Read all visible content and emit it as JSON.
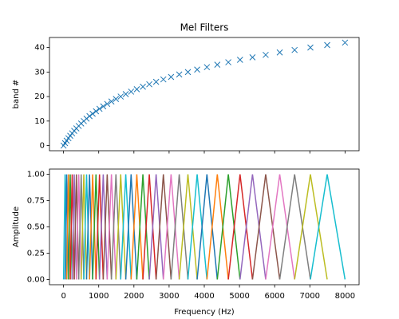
{
  "chart_data": [
    {
      "type": "scatter",
      "title": "Mel Filters",
      "y_label": "band #",
      "marker": "x",
      "color": "#1f77b4",
      "x": [
        0,
        43,
        89,
        138,
        190,
        245,
        303,
        365,
        431,
        501,
        576,
        654,
        738,
        827,
        922,
        1022,
        1128,
        1241,
        1361,
        1489,
        1624,
        1768,
        1920,
        2082,
        2255,
        2437,
        2631,
        2837,
        3056,
        3288,
        3535,
        3797,
        4075,
        4370,
        4683,
        5016,
        5370,
        5745,
        6144,
        6567,
        7016,
        7493,
        8000
      ],
      "values": [
        0,
        1,
        2,
        3,
        4,
        5,
        6,
        7,
        8,
        9,
        10,
        11,
        12,
        13,
        14,
        15,
        16,
        17,
        18,
        19,
        20,
        21,
        22,
        23,
        24,
        25,
        26,
        27,
        28,
        29,
        30,
        31,
        32,
        33,
        34,
        35,
        36,
        37,
        38,
        39,
        40,
        41,
        42
      ],
      "xlim": [
        -400,
        8400
      ],
      "ylim": [
        -2.1,
        44.1
      ],
      "xticks": [
        0,
        1000,
        2000,
        3000,
        4000,
        5000,
        6000,
        7000,
        8000
      ],
      "yticks": [
        0,
        10,
        20,
        30,
        40
      ]
    },
    {
      "type": "line",
      "x_label": "Frequency (Hz)",
      "y_label": "Amplitude",
      "xlim": [
        -400,
        8400
      ],
      "ylim": [
        -0.05,
        1.05
      ],
      "xticks": [
        0,
        1000,
        2000,
        3000,
        4000,
        5000,
        6000,
        7000,
        8000
      ],
      "yticks": [
        {
          "value": 0,
          "label": "0.00"
        },
        {
          "value": 0.25,
          "label": "0.25"
        },
        {
          "value": 0.5,
          "label": "0.50"
        },
        {
          "value": 0.75,
          "label": "0.75"
        },
        {
          "value": 1,
          "label": "1.00"
        }
      ],
      "series": [
        {
          "color": "#17becf",
          "x": [
            0,
            43,
            89
          ],
          "values": [
            0,
            1,
            0
          ]
        },
        {
          "color": "#1f77b4",
          "x": [
            43,
            89,
            138
          ],
          "values": [
            0,
            1,
            0
          ]
        },
        {
          "color": "#ff7f0e",
          "x": [
            89,
            138,
            190
          ],
          "values": [
            0,
            1,
            0
          ]
        },
        {
          "color": "#2ca02c",
          "x": [
            138,
            190,
            245
          ],
          "values": [
            0,
            1,
            0
          ]
        },
        {
          "color": "#d62728",
          "x": [
            190,
            245,
            303
          ],
          "values": [
            0,
            1,
            0
          ]
        },
        {
          "color": "#9467bd",
          "x": [
            245,
            303,
            365
          ],
          "values": [
            0,
            1,
            0
          ]
        },
        {
          "color": "#8c564b",
          "x": [
            303,
            365,
            431
          ],
          "values": [
            0,
            1,
            0
          ]
        },
        {
          "color": "#e377c2",
          "x": [
            365,
            431,
            501
          ],
          "values": [
            0,
            1,
            0
          ]
        },
        {
          "color": "#7f7f7f",
          "x": [
            431,
            501,
            576
          ],
          "values": [
            0,
            1,
            0
          ]
        },
        {
          "color": "#bcbd22",
          "x": [
            501,
            576,
            654
          ],
          "values": [
            0,
            1,
            0
          ]
        },
        {
          "color": "#17becf",
          "x": [
            576,
            654,
            738
          ],
          "values": [
            0,
            1,
            0
          ]
        },
        {
          "color": "#1f77b4",
          "x": [
            654,
            738,
            827
          ],
          "values": [
            0,
            1,
            0
          ]
        },
        {
          "color": "#ff7f0e",
          "x": [
            738,
            827,
            922
          ],
          "values": [
            0,
            1,
            0
          ]
        },
        {
          "color": "#2ca02c",
          "x": [
            827,
            922,
            1022
          ],
          "values": [
            0,
            1,
            0
          ]
        },
        {
          "color": "#d62728",
          "x": [
            922,
            1022,
            1128
          ],
          "values": [
            0,
            1,
            0
          ]
        },
        {
          "color": "#9467bd",
          "x": [
            1022,
            1128,
            1241
          ],
          "values": [
            0,
            1,
            0
          ]
        },
        {
          "color": "#8c564b",
          "x": [
            1128,
            1241,
            1361
          ],
          "values": [
            0,
            1,
            0
          ]
        },
        {
          "color": "#e377c2",
          "x": [
            1241,
            1361,
            1489
          ],
          "values": [
            0,
            1,
            0
          ]
        },
        {
          "color": "#7f7f7f",
          "x": [
            1361,
            1489,
            1624
          ],
          "values": [
            0,
            1,
            0
          ]
        },
        {
          "color": "#bcbd22",
          "x": [
            1489,
            1624,
            1768
          ],
          "values": [
            0,
            1,
            0
          ]
        },
        {
          "color": "#17becf",
          "x": [
            1624,
            1768,
            1920
          ],
          "values": [
            0,
            1,
            0
          ]
        },
        {
          "color": "#1f77b4",
          "x": [
            1768,
            1920,
            2082
          ],
          "values": [
            0,
            1,
            0
          ]
        },
        {
          "color": "#ff7f0e",
          "x": [
            1920,
            2082,
            2255
          ],
          "values": [
            0,
            1,
            0
          ]
        },
        {
          "color": "#2ca02c",
          "x": [
            2082,
            2255,
            2437
          ],
          "values": [
            0,
            1,
            0
          ]
        },
        {
          "color": "#d62728",
          "x": [
            2255,
            2437,
            2631
          ],
          "values": [
            0,
            1,
            0
          ]
        },
        {
          "color": "#9467bd",
          "x": [
            2437,
            2631,
            2837
          ],
          "values": [
            0,
            1,
            0
          ]
        },
        {
          "color": "#8c564b",
          "x": [
            2631,
            2837,
            3056
          ],
          "values": [
            0,
            1,
            0
          ]
        },
        {
          "color": "#e377c2",
          "x": [
            2837,
            3056,
            3288
          ],
          "values": [
            0,
            1,
            0
          ]
        },
        {
          "color": "#7f7f7f",
          "x": [
            3056,
            3288,
            3535
          ],
          "values": [
            0,
            1,
            0
          ]
        },
        {
          "color": "#bcbd22",
          "x": [
            3288,
            3535,
            3797
          ],
          "values": [
            0,
            1,
            0
          ]
        },
        {
          "color": "#17becf",
          "x": [
            3535,
            3797,
            4075
          ],
          "values": [
            0,
            1,
            0
          ]
        },
        {
          "color": "#1f77b4",
          "x": [
            3797,
            4075,
            4370
          ],
          "values": [
            0,
            1,
            0
          ]
        },
        {
          "color": "#ff7f0e",
          "x": [
            4075,
            4370,
            4683
          ],
          "values": [
            0,
            1,
            0
          ]
        },
        {
          "color": "#2ca02c",
          "x": [
            4370,
            4683,
            5016
          ],
          "values": [
            0,
            1,
            0
          ]
        },
        {
          "color": "#d62728",
          "x": [
            4683,
            5016,
            5370
          ],
          "values": [
            0,
            1,
            0
          ]
        },
        {
          "color": "#9467bd",
          "x": [
            5016,
            5370,
            5745
          ],
          "values": [
            0,
            1,
            0
          ]
        },
        {
          "color": "#8c564b",
          "x": [
            5370,
            5745,
            6144
          ],
          "values": [
            0,
            1,
            0
          ]
        },
        {
          "color": "#e377c2",
          "x": [
            5745,
            6144,
            6567
          ],
          "values": [
            0,
            1,
            0
          ]
        },
        {
          "color": "#7f7f7f",
          "x": [
            6144,
            6567,
            7016
          ],
          "values": [
            0,
            1,
            0
          ]
        },
        {
          "color": "#bcbd22",
          "x": [
            6567,
            7016,
            7493
          ],
          "values": [
            0,
            1,
            0
          ]
        },
        {
          "color": "#17becf",
          "x": [
            7016,
            7493,
            8000
          ],
          "values": [
            0,
            1,
            0
          ]
        }
      ]
    }
  ]
}
